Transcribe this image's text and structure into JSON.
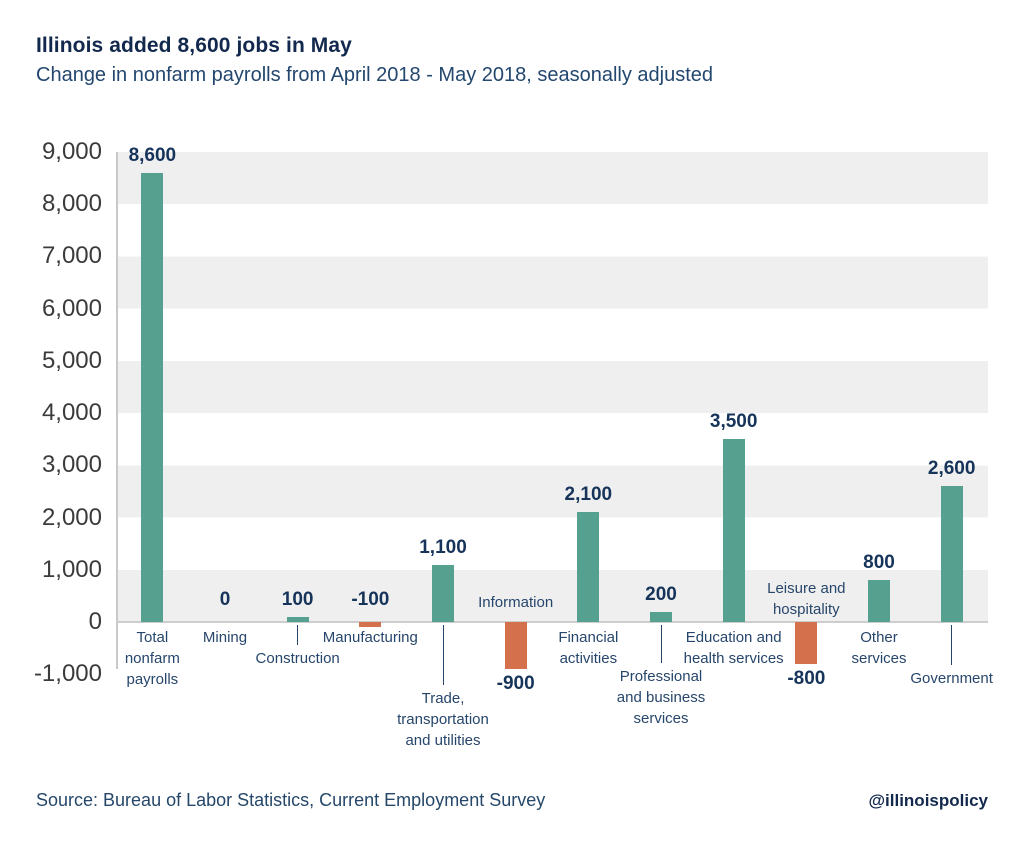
{
  "header": {
    "title": "Illinois added 8,600 jobs in May",
    "subtitle": "Change in nonfarm payrolls from April 2018 - May 2018, seasonally adjusted"
  },
  "footer": {
    "source": "Source: Bureau of Labor Statistics, Current Employment Survey",
    "handle": "@illinoispolicy"
  },
  "chart_data": {
    "type": "bar",
    "title": "Illinois added 8,600 jobs in May",
    "subtitle": "Change in nonfarm payrolls from April 2018 - May 2018, seasonally adjusted",
    "categories": [
      "Total nonfarm payrolls",
      "Mining",
      "Construction",
      "Manufacturing",
      "Trade, transportation and utilities",
      "Information",
      "Financial activities",
      "Professional and business services",
      "Education and health services",
      "Leisure and hospitality",
      "Other services",
      "Government"
    ],
    "values": [
      8600,
      0,
      100,
      -100,
      1100,
      -900,
      2100,
      200,
      3500,
      -800,
      800,
      2600
    ],
    "value_labels": [
      "8,600",
      "0",
      "100",
      "-100",
      "1,100",
      "-900",
      "2,100",
      "200",
      "3,500",
      "-800",
      "800",
      "2,600"
    ],
    "category_lines": [
      [
        "Total",
        "nonfarm",
        "payrolls"
      ],
      [
        "Mining"
      ],
      [
        "Construction"
      ],
      [
        "Manufacturing"
      ],
      [
        "Trade,",
        "transportation",
        "and utilities"
      ],
      [
        "Information"
      ],
      [
        "Financial",
        "activities"
      ],
      [
        "Professional",
        "and business",
        "services"
      ],
      [
        "Education and",
        "health services"
      ],
      [
        "Leisure and",
        "hospitality"
      ],
      [
        "Other",
        "services"
      ],
      [
        "Government"
      ]
    ],
    "xlabel": "",
    "ylabel": "",
    "ylim": [
      -1000,
      9000
    ],
    "ytick_step": 1000,
    "yticks": [
      "9,000",
      "8,000",
      "7,000",
      "6,000",
      "5,000",
      "4,000",
      "3,000",
      "2,000",
      "1,000",
      "0",
      "-1,000"
    ],
    "grid": "alternating-horizontal-bands",
    "legend": "none",
    "colors": {
      "positive_bar": "#55a08f",
      "negative_bar": "#d4714c",
      "band_gray": "#efefef",
      "axis_gray": "#c9c9c9",
      "value_label": "#16345a",
      "category_label": "#27466b",
      "tick_label": "#3b3b3b",
      "title": "#12294d"
    }
  }
}
